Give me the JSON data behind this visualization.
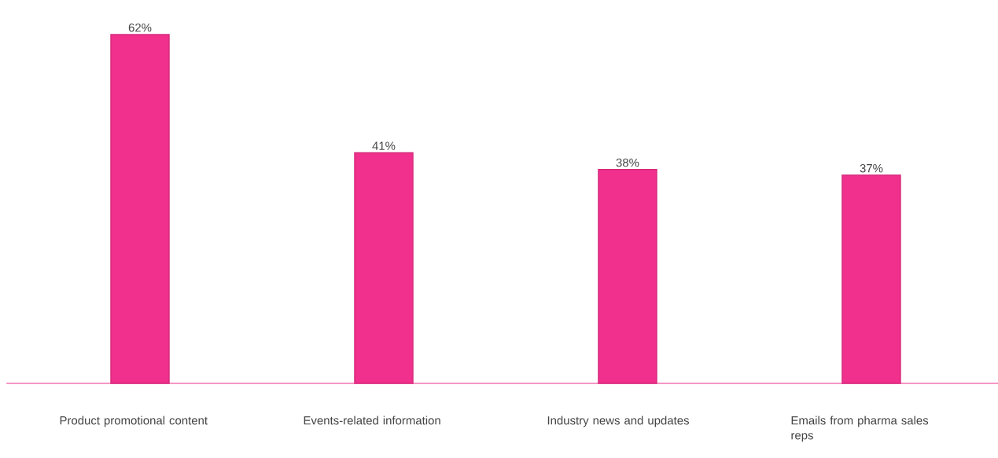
{
  "chart_data": {
    "type": "bar",
    "categories": [
      "Product promotional content",
      "Events-related information",
      "Industry news and updates",
      "Emails from pharma sales reps"
    ],
    "values": [
      62,
      41,
      38,
      37
    ],
    "value_labels": [
      "62%",
      "41%",
      "38%",
      "37%"
    ],
    "color": "#f0308c"
  }
}
